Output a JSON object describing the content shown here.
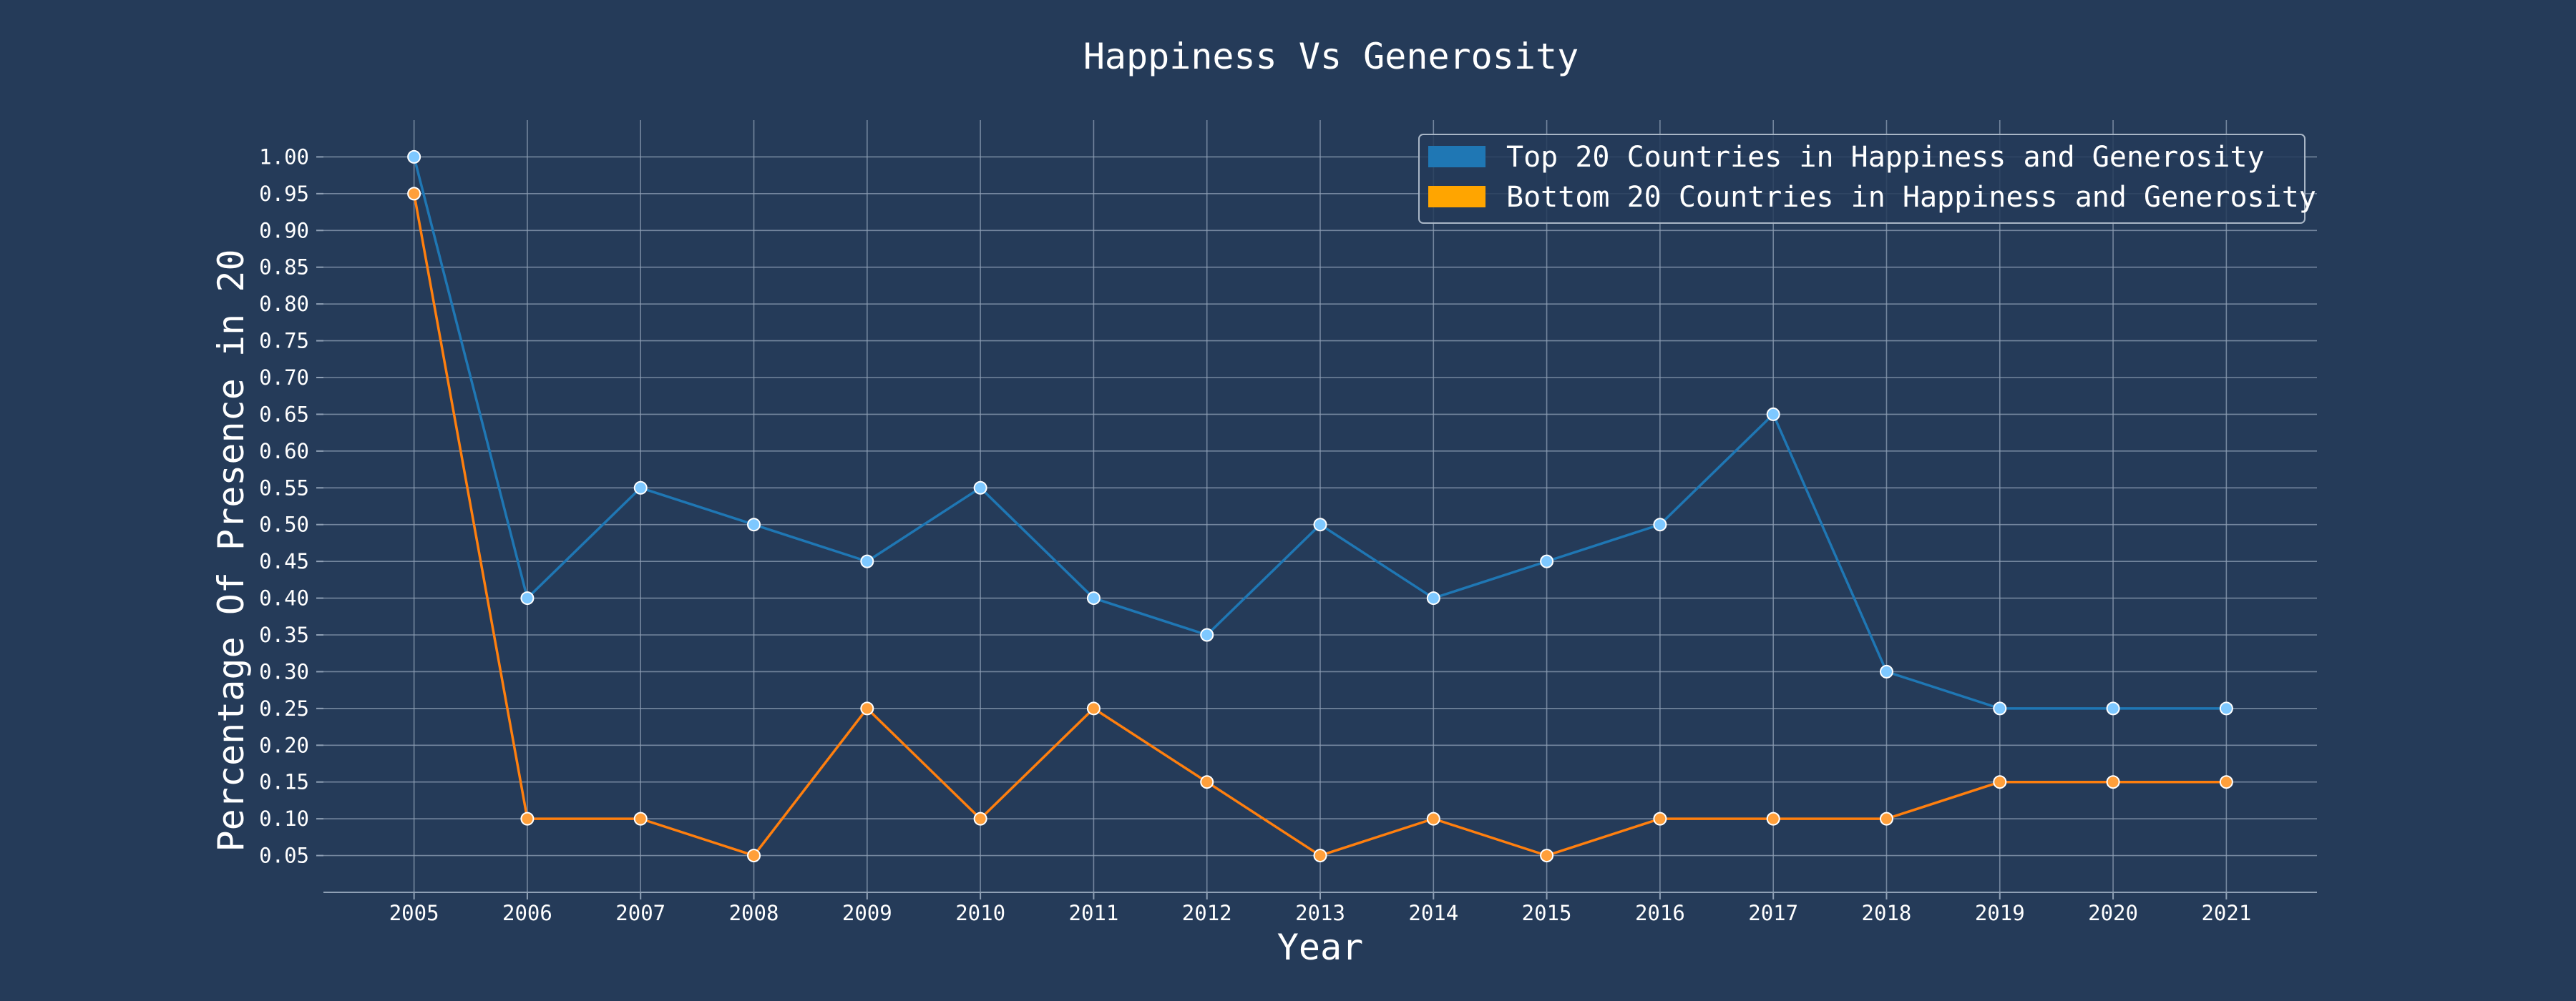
{
  "chart_data": {
    "type": "line",
    "title": "Happiness Vs Generosity",
    "xlabel": "Year",
    "ylabel": "Percentage Of Presence in 20",
    "x": [
      2005,
      2006,
      2007,
      2008,
      2009,
      2010,
      2011,
      2012,
      2013,
      2014,
      2015,
      2016,
      2017,
      2018,
      2019,
      2020,
      2021
    ],
    "series": [
      {
        "name": "Top 20 Countries in Happiness and Generosity",
        "color": "#1f77b4",
        "marker_color": "#7ec8ff",
        "values": [
          1.0,
          0.4,
          0.55,
          0.5,
          0.45,
          0.55,
          0.4,
          0.35,
          0.5,
          0.4,
          0.45,
          0.5,
          0.65,
          0.3,
          0.25,
          0.25,
          0.25
        ]
      },
      {
        "name": "Bottom 20 Countries in Happiness and Generosity",
        "color": "#ff7f0e",
        "marker_color": "#ff9f3a",
        "values": [
          0.95,
          0.1,
          0.1,
          0.05,
          0.25,
          0.1,
          0.25,
          0.15,
          0.05,
          0.1,
          0.05,
          0.1,
          0.1,
          0.1,
          0.15,
          0.15,
          0.15
        ]
      }
    ],
    "legend_patch_colors": [
      "#1f77b4",
      "#ffa500"
    ],
    "y_ticks": [
      "0.05",
      "0.10",
      "0.15",
      "0.20",
      "0.25",
      "0.30",
      "0.35",
      "0.40",
      "0.45",
      "0.50",
      "0.55",
      "0.60",
      "0.65",
      "0.70",
      "0.75",
      "0.80",
      "0.85",
      "0.90",
      "0.95",
      "1.00"
    ],
    "x_ticks": [
      "2005",
      "2006",
      "2007",
      "2008",
      "2009",
      "2010",
      "2011",
      "2012",
      "2013",
      "2014",
      "2015",
      "2016",
      "2017",
      "2018",
      "2019",
      "2020",
      "2021"
    ],
    "ylim": [
      0.0,
      1.05
    ],
    "xlim": [
      2004.2,
      2021.8
    ],
    "grid": true,
    "legend_position": "top-right",
    "background_color": "#253b59"
  }
}
